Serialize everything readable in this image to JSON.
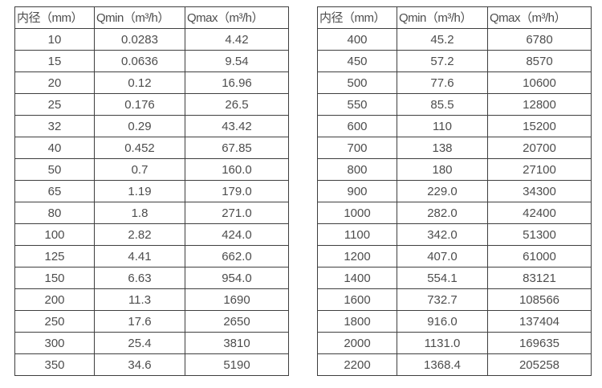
{
  "tables": [
    {
      "name": "flow-range-table-small-diameters",
      "headers": [
        "内径（mm）",
        "Qmin（m³/h）",
        "Qmax（m³/h）"
      ],
      "rows": [
        [
          "10",
          "0.0283",
          "4.42"
        ],
        [
          "15",
          "0.0636",
          "9.54"
        ],
        [
          "20",
          "0.12",
          "16.96"
        ],
        [
          "25",
          "0.176",
          "26.5"
        ],
        [
          "32",
          "0.29",
          "43.42"
        ],
        [
          "40",
          "0.452",
          "67.85"
        ],
        [
          "50",
          "0.7",
          "160.0"
        ],
        [
          "65",
          "1.19",
          "179.0"
        ],
        [
          "80",
          "1.8",
          "271.0"
        ],
        [
          "100",
          "2.82",
          "424.0"
        ],
        [
          "125",
          "4.41",
          "662.0"
        ],
        [
          "150",
          "6.63",
          "954.0"
        ],
        [
          "200",
          "11.3",
          "1690"
        ],
        [
          "250",
          "17.6",
          "2650"
        ],
        [
          "300",
          "25.4",
          "3810"
        ],
        [
          "350",
          "34.6",
          "5190"
        ]
      ]
    },
    {
      "name": "flow-range-table-large-diameters",
      "headers": [
        "内径（mm）",
        "Qmin（m³/h）",
        "Qmax（m³/h）"
      ],
      "rows": [
        [
          "400",
          "45.2",
          "6780"
        ],
        [
          "450",
          "57.2",
          "8570"
        ],
        [
          "500",
          "77.6",
          "10600"
        ],
        [
          "550",
          "85.5",
          "12800"
        ],
        [
          "600",
          "110",
          "15200"
        ],
        [
          "700",
          "138",
          "20700"
        ],
        [
          "800",
          "180",
          "27100"
        ],
        [
          "900",
          "229.0",
          "34300"
        ],
        [
          "1000",
          "282.0",
          "42400"
        ],
        [
          "1100",
          "342.0",
          "51300"
        ],
        [
          "1200",
          "407.0",
          "61000"
        ],
        [
          "1400",
          "554.1",
          "83121"
        ],
        [
          "1600",
          "732.7",
          "108566"
        ],
        [
          "1800",
          "916.0",
          "137404"
        ],
        [
          "2000",
          "1131.0",
          "169635"
        ],
        [
          "2200",
          "1368.4",
          "205258"
        ]
      ]
    }
  ],
  "colors": {
    "text": "#4d4d4d",
    "border": "#3f3f3f",
    "background": "#ffffff"
  }
}
